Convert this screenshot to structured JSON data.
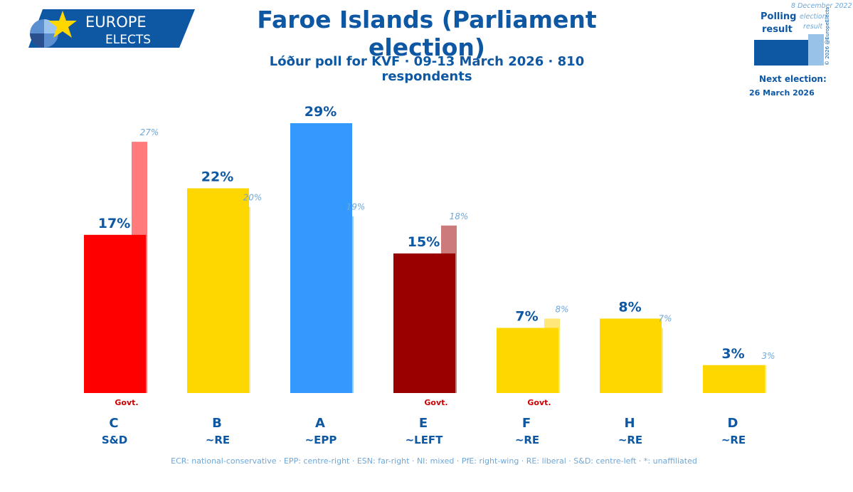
{
  "header": {
    "logo_line1": "EUROPE",
    "logo_line2": "ELECTS",
    "title": "Faroe Islands (Parliament election)",
    "subtitle": "Lóður poll for KVF · 09-13 March 2026 · 810 respondents"
  },
  "legend": {
    "polling_label_1": "Polling",
    "polling_label_2": "result",
    "election_date": "8 December 2022",
    "election_label_1": "election",
    "election_label_2": "result",
    "copyright": "© 2026 @EuropeElects",
    "next_election_label": "Next election:",
    "next_election_date": "26 March 2026"
  },
  "footer": {
    "text": "ECR: national-conservative · EPP: centre-right · ESN: far-right · NI: mixed · PfE: right-wing · RE: liberal · S&D: centre-left · *: unaffiliated"
  },
  "chart_data": {
    "type": "bar",
    "categories": [
      "C",
      "B",
      "A",
      "E",
      "F",
      "H",
      "D"
    ],
    "groups": [
      "S&D",
      "~RE",
      "~EPP",
      "~LEFT",
      "~RE",
      "~RE",
      "~RE"
    ],
    "series": [
      {
        "name": "Polling result",
        "values": [
          17,
          22,
          29,
          15,
          7,
          8,
          3
        ]
      },
      {
        "name": "8 December 2022 election result",
        "values": [
          27,
          20,
          19,
          18,
          8,
          7,
          3
        ]
      }
    ],
    "govt": [
      true,
      false,
      false,
      true,
      true,
      false,
      false
    ],
    "govt_label": "Govt.",
    "poll_colors": [
      "#ff0000",
      "#ffd700",
      "#3399ff",
      "#990000",
      "#ffd700",
      "#ffd700",
      "#ffd700"
    ],
    "prev_colors": [
      "#ff7b7b",
      "#ffe779",
      "#99ccff",
      "#cc7b7b",
      "#ffe779",
      "#ffe779",
      "#ffe779"
    ],
    "ylim": [
      0,
      29
    ],
    "label_color": "#0d57a3",
    "prev_label_color": "#6ea7d8"
  }
}
